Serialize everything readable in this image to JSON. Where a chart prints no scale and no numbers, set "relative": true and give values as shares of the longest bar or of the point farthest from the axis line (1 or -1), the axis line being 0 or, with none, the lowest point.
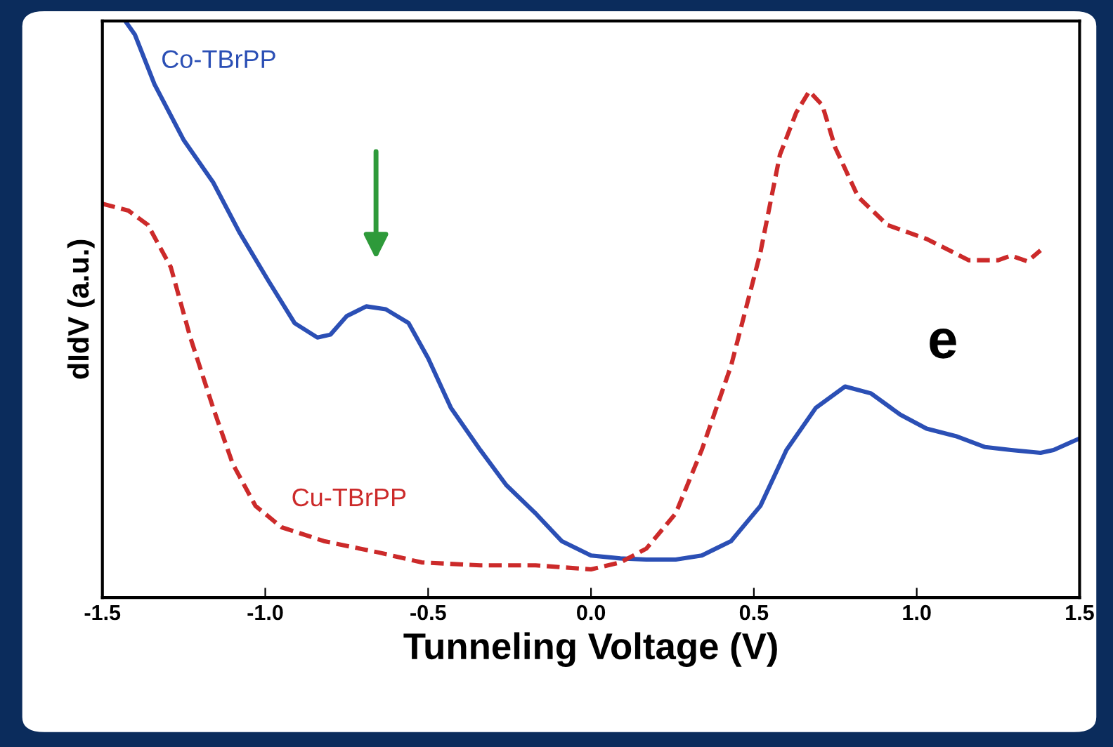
{
  "chart_data": {
    "type": "line",
    "relative": true,
    "xlabel": "Tunneling Voltage (V)",
    "ylabel": "dIdV (a.u.)",
    "annotations": [
      "e"
    ],
    "xlim": [
      -1.5,
      1.5
    ],
    "xticks": [
      -1.5,
      {
        "value": -1.0,
        "label": "-1.0"
      },
      -0.5,
      {
        "value": 0.0,
        "label": "0.0"
      },
      0.5,
      {
        "value": 1.0,
        "label": "1.0"
      },
      1.5
    ],
    "grid": false,
    "legend": false,
    "series": [
      {
        "name": "Co-TBrPP",
        "color": "#2b4fb5",
        "line_style": "solid",
        "x": [
          -1.43,
          -1.4,
          -1.34,
          -1.25,
          -1.16,
          -1.08,
          -0.99,
          -0.91,
          -0.84,
          -0.8,
          -0.75,
          -0.69,
          -0.63,
          -0.56,
          -0.5,
          -0.43,
          -0.34,
          -0.26,
          -0.17,
          -0.09,
          0.0,
          0.09,
          0.17,
          0.26,
          0.34,
          0.43,
          0.52,
          0.6,
          0.69,
          0.78,
          0.86,
          0.95,
          1.03,
          1.12,
          1.21,
          1.29,
          1.38,
          1.42,
          1.5
        ],
        "values": [
          1.0,
          0.976,
          0.89,
          0.793,
          0.72,
          0.634,
          0.549,
          0.476,
          0.451,
          0.456,
          0.488,
          0.505,
          0.5,
          0.476,
          0.415,
          0.329,
          0.256,
          0.195,
          0.146,
          0.098,
          0.073,
          0.068,
          0.066,
          0.066,
          0.073,
          0.098,
          0.159,
          0.256,
          0.329,
          0.366,
          0.354,
          0.317,
          0.293,
          0.28,
          0.261,
          0.256,
          0.251,
          0.256,
          0.276
        ]
      },
      {
        "name": "Cu-TBrPP",
        "color": "#cc2a2a",
        "line_style": "dashed",
        "x": [
          -1.5,
          -1.42,
          -1.36,
          -1.29,
          -1.23,
          -1.16,
          -1.1,
          -1.03,
          -0.95,
          -0.82,
          -0.65,
          -0.52,
          -0.34,
          -0.17,
          0.0,
          0.09,
          0.17,
          0.26,
          0.34,
          0.43,
          0.52,
          0.58,
          0.63,
          0.67,
          0.71,
          0.75,
          0.82,
          0.91,
          1.03,
          1.16,
          1.25,
          1.29,
          1.34,
          1.38
        ],
        "values": [
          0.683,
          0.671,
          0.646,
          0.573,
          0.451,
          0.329,
          0.232,
          0.159,
          0.122,
          0.098,
          0.078,
          0.061,
          0.056,
          0.056,
          0.049,
          0.061,
          0.085,
          0.146,
          0.256,
          0.402,
          0.598,
          0.768,
          0.841,
          0.878,
          0.854,
          0.78,
          0.695,
          0.646,
          0.622,
          0.585,
          0.585,
          0.593,
          0.583,
          0.602
        ]
      }
    ]
  }
}
